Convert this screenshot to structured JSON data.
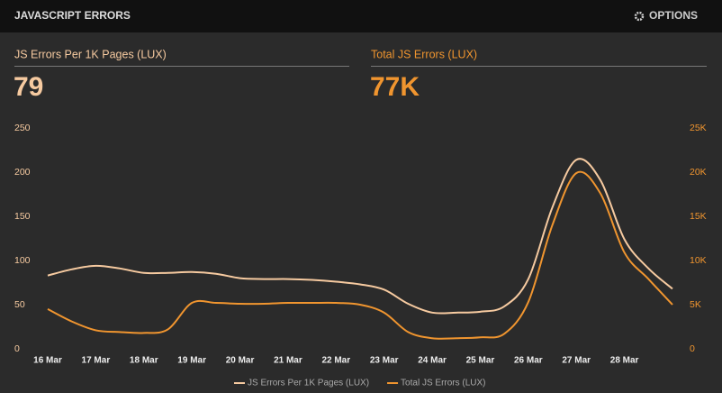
{
  "header": {
    "title": "JAVASCRIPT ERRORS",
    "options": "OPTIONS"
  },
  "stats": [
    {
      "label": "JS Errors Per 1K Pages (LUX)",
      "value": "79"
    },
    {
      "label": "Total JS Errors (LUX)",
      "value": "77K"
    }
  ],
  "chart_data": {
    "type": "line",
    "categories": [
      "16 Mar",
      null,
      "17 Mar",
      null,
      "18 Mar",
      null,
      "19 Mar",
      null,
      "20 Mar",
      null,
      "21 Mar",
      null,
      "22 Mar",
      null,
      "23 Mar",
      null,
      "24 Mar",
      null,
      "25 Mar",
      null,
      "26 Mar",
      null,
      "27 Mar",
      null,
      "28 Mar",
      null,
      null
    ],
    "series": [
      {
        "name": "JS Errors Per 1K Pages (LUX)",
        "color": "#f6caa0",
        "values": [
          83,
          90,
          94,
          91,
          86,
          86,
          87,
          85,
          80,
          79,
          79,
          78,
          76,
          73,
          67,
          51,
          41,
          41,
          42,
          48,
          79,
          160,
          214,
          191,
          124,
          91,
          68
        ]
      },
      {
        "name": "Total JS Errors (LUX)",
        "color": "#f0952f",
        "axis": "y2",
        "values": [
          4500,
          3100,
          2100,
          1900,
          1800,
          2200,
          5200,
          5200,
          5100,
          5100,
          5200,
          5200,
          5200,
          5000,
          4100,
          1900,
          1200,
          1200,
          1300,
          1700,
          5300,
          14000,
          19900,
          17600,
          10900,
          7900,
          5000
        ]
      }
    ],
    "ylim": [
      0,
      250
    ],
    "yticks": [
      0,
      50,
      100,
      150,
      200,
      250
    ],
    "y2lim": [
      0,
      25000
    ],
    "y2ticks": [
      0,
      {
        "value": 5000,
        "label": "5K"
      },
      {
        "value": 10000,
        "label": "10K"
      },
      {
        "value": 15000,
        "label": "15K"
      },
      {
        "value": 20000,
        "label": "20K"
      },
      {
        "value": 25000,
        "label": "25K"
      }
    ]
  }
}
